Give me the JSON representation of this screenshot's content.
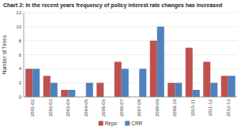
{
  "chart_data": {
    "type": "bar",
    "title": "Chart 2: In the recent years frequency of policy interest rate changes has increased",
    "categories": [
      "2001-02",
      "2002-03",
      "2003-04",
      "2004-05",
      "2005-06",
      "2006-07",
      "2007-08",
      "2008-09",
      "2009-10",
      "2010-11",
      "2011-12",
      "2012-13"
    ],
    "series": [
      {
        "name": "Repo",
        "color": "#c0504d",
        "values": [
          4,
          3,
          1,
          0,
          2,
          5,
          0,
          8,
          2,
          7,
          5,
          3
        ]
      },
      {
        "name": "CRR",
        "color": "#4f81bd",
        "values": [
          4,
          2,
          1,
          2,
          0,
          4,
          4,
          10,
          2,
          1,
          2,
          3
        ]
      }
    ],
    "ylabel": "Number of Times",
    "ylim": [
      0,
      12
    ],
    "yticks": [
      0,
      2,
      4,
      6,
      8,
      10,
      12
    ],
    "grid": true,
    "legend": "bottom"
  }
}
